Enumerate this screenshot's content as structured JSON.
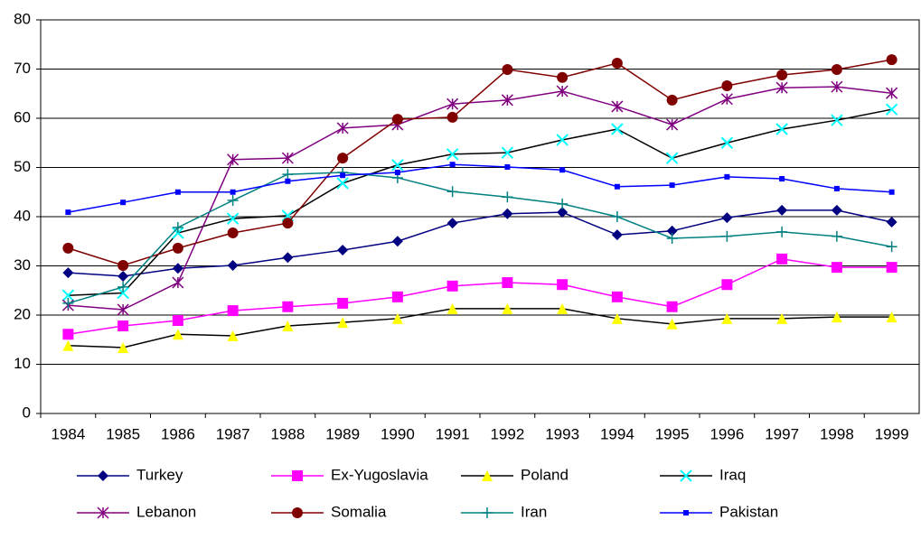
{
  "chart_data": {
    "type": "line",
    "categories": [
      "1984",
      "1985",
      "1986",
      "1987",
      "1988",
      "1989",
      "1990",
      "1991",
      "1992",
      "1993",
      "1994",
      "1995",
      "1996",
      "1997",
      "1998",
      "1999"
    ],
    "ylim": [
      0,
      80
    ],
    "yticks": [
      0,
      10,
      20,
      30,
      40,
      50,
      60,
      70,
      80
    ],
    "grid": true,
    "legend": "bottom",
    "series": [
      {
        "name": "Turkey",
        "color": "#000080",
        "marker": "diamond",
        "marker_color": "#000080",
        "values": [
          28.6,
          27.9,
          29.5,
          30.1,
          31.7,
          33.2,
          35,
          38.7,
          40.6,
          40.9,
          36.3,
          37.1,
          39.8,
          41.3,
          41.3,
          38.9
        ]
      },
      {
        "name": "Ex-Yugoslavia",
        "color": "#ff00ff",
        "marker": "square",
        "marker_color": "#ff00ff",
        "values": [
          16.1,
          17.8,
          18.9,
          20.9,
          21.7,
          22.4,
          23.7,
          25.9,
          26.6,
          26.2,
          23.7,
          21.7,
          26.2,
          31.4,
          29.7,
          29.7
        ]
      },
      {
        "name": "Poland",
        "color": "#000000",
        "marker": "triangle",
        "marker_color": "#ffff00",
        "values": [
          13.8,
          13.4,
          16.1,
          15.8,
          17.8,
          18.5,
          19.3,
          21.3,
          21.3,
          21.3,
          19.3,
          18.2,
          19.3,
          19.3,
          19.6,
          19.6
        ]
      },
      {
        "name": "Iraq",
        "color": "#000000",
        "marker": "x",
        "marker_color": "#00ffff",
        "values": [
          24,
          24.5,
          36.7,
          39.6,
          40.2,
          46.8,
          50.5,
          52.7,
          53,
          55.6,
          57.8,
          51.9,
          55,
          57.8,
          59.6,
          61.8
        ]
      },
      {
        "name": "Lebanon",
        "color": "#800080",
        "marker": "asterisk",
        "marker_color": "#800080",
        "values": [
          22,
          21.1,
          26.6,
          51.6,
          51.9,
          58,
          58.7,
          62.9,
          63.7,
          65.5,
          62.4,
          58.7,
          63.9,
          66.2,
          66.4,
          65.1
        ]
      },
      {
        "name": "Somalia",
        "color": "#800000",
        "marker": "circle",
        "marker_color": "#800000",
        "values": [
          33.6,
          30.1,
          33.6,
          36.7,
          38.7,
          51.9,
          59.8,
          60.2,
          69.9,
          68.3,
          71.2,
          63.7,
          66.6,
          68.8,
          69.9,
          71.9
        ]
      },
      {
        "name": "Iran",
        "color": "#008080",
        "marker": "plus",
        "marker_color": "#008080",
        "values": [
          22.4,
          25.7,
          37.8,
          43.3,
          48.6,
          49,
          47.9,
          45.1,
          44,
          42.6,
          40,
          35.6,
          36,
          36.9,
          36,
          33.9
        ]
      },
      {
        "name": "Pakistan",
        "color": "#0000ff",
        "marker": "smallsquare",
        "marker_color": "#0000ff",
        "values": [
          40.9,
          42.9,
          45,
          45,
          47.2,
          48.4,
          49,
          50.6,
          50.1,
          49.5,
          46.1,
          46.4,
          48.1,
          47.7,
          45.7,
          45
        ]
      }
    ]
  }
}
